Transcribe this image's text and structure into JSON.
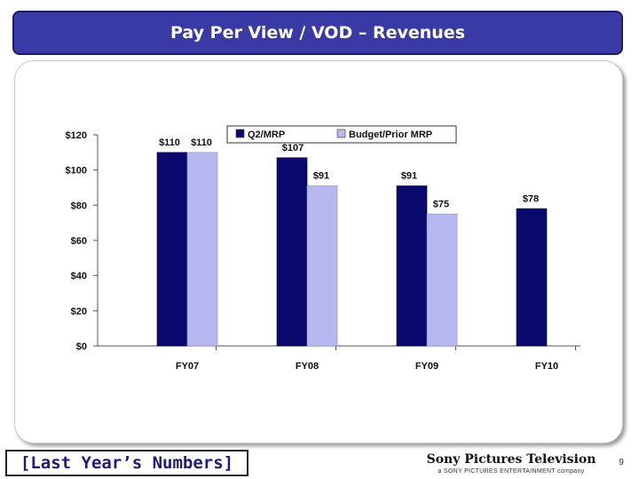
{
  "slide": {
    "title": "Pay Per View / VOD – Revenues",
    "footer_note": "[Last Year’s Numbers]",
    "brand_name": "Sony Pictures Television",
    "brand_tagline": "a SONY PICTURES ENTERTAINMENT company",
    "page_number": "9"
  },
  "colors": {
    "title_bg": "#3a3aa6",
    "series_q2": "#0a0a6e",
    "series_budget": "#b8b8f0"
  },
  "chart_data": {
    "type": "bar",
    "categories": [
      "FY07",
      "FY08",
      "FY09",
      "FY10"
    ],
    "series": [
      {
        "name": "Q2/MRP",
        "values": [
          110,
          107,
          91,
          78
        ],
        "labels": [
          "$110",
          "$107",
          "$91",
          "$78"
        ]
      },
      {
        "name": "Budget/Prior MRP",
        "values": [
          110,
          91,
          75,
          null
        ],
        "labels": [
          "$110",
          "$91",
          "$75",
          ""
        ]
      }
    ],
    "ylim": [
      0,
      120
    ],
    "yticks": [
      0,
      20,
      40,
      60,
      80,
      100,
      120
    ],
    "ytick_labels": [
      "$0",
      "$20",
      "$40",
      "$60",
      "$80",
      "$100",
      "$120"
    ],
    "legend_position": "top-center",
    "grid": false
  }
}
